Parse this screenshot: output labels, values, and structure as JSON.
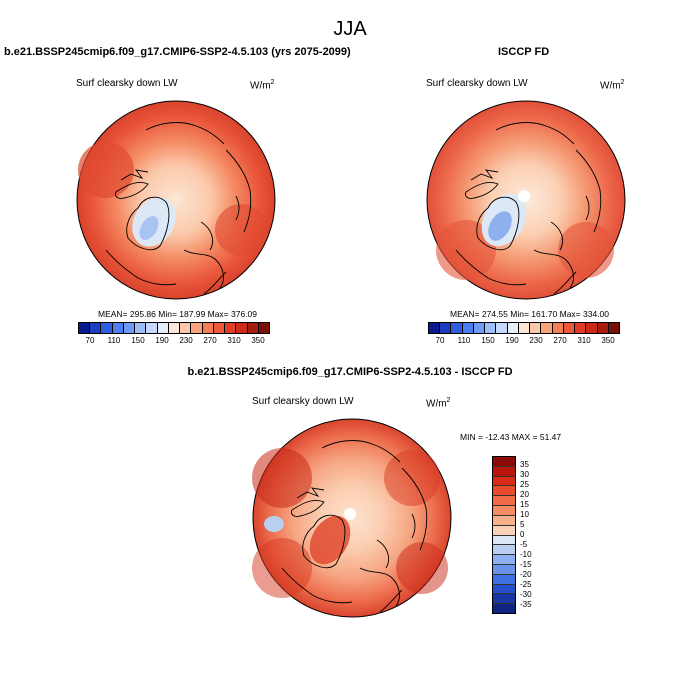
{
  "season": "JJA",
  "panels": [
    {
      "title": "b.e21.BSSP245cmip6.f09_g17.CMIP6-SSP2-4.5.103 (yrs 2075-2099)",
      "variable": "Surf clearsky down LW",
      "units": "W/m",
      "units_exp": "2",
      "stats": "MEAN= 295.86  Min= 187.99  Max= 376.09"
    },
    {
      "title": "ISCCP FD",
      "variable": "Surf clearsky down LW",
      "units": "W/m",
      "units_exp": "2",
      "stats": "MEAN= 274.55  Min= 161.70  Max= 334.00"
    },
    {
      "title": "b.e21.BSSP245cmip6.f09_g17.CMIP6-SSP2-4.5.103 - ISCCP FD",
      "variable": "Surf clearsky down LW",
      "units": "W/m",
      "units_exp": "2",
      "stats": "MIN = -12.43 MAX =  51.47"
    }
  ],
  "abs_colorbar": {
    "labels": [
      "70",
      "110",
      "150",
      "190",
      "230",
      "270",
      "310",
      "350"
    ],
    "colors": [
      "#0a1a8c",
      "#1c3fc2",
      "#2f5fe0",
      "#4a7ef2",
      "#6f9cf6",
      "#9bbdf8",
      "#c5d8fa",
      "#e6eefb",
      "#fde6d6",
      "#fbc9aa",
      "#f8a27c",
      "#f47c57",
      "#ec5a3b",
      "#e13d26",
      "#cc2a1a",
      "#a61d12",
      "#7a1109"
    ]
  },
  "diff_colorbar": {
    "labels": [
      "35",
      "30",
      "25",
      "20",
      "15",
      "10",
      "5",
      "0",
      "-5",
      "-10",
      "-15",
      "-20",
      "-25",
      "-30",
      "-35"
    ],
    "colors": [
      "#8b0a06",
      "#b8160d",
      "#d82a17",
      "#e84a2c",
      "#f06a45",
      "#f58c63",
      "#f8b08b",
      "#fbd1b6",
      "#dde8f6",
      "#b9cff2",
      "#8fb0ee",
      "#6a93ea",
      "#3f6fe2",
      "#2550cc",
      "#1738a5",
      "#0e2580"
    ]
  }
}
